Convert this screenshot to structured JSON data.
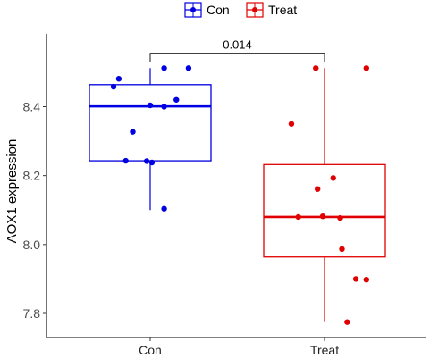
{
  "chart_data": {
    "type": "boxplot",
    "xlabel": "",
    "ylabel": "AOX1 expression",
    "ylim": [
      7.75,
      8.56
    ],
    "yticks": [
      7.8,
      8.0,
      8.2,
      8.4
    ],
    "ytick_labels": [
      "7.8",
      "8.0",
      "8.2",
      "8.4"
    ],
    "categories": [
      "Con",
      "Treat"
    ],
    "legend": {
      "position": "top",
      "entries": [
        "Con",
        "Treat"
      ]
    },
    "groups": [
      {
        "name": "Con",
        "color": "#0000e0",
        "min": 8.1,
        "q1": 8.243,
        "median": 8.401,
        "q3": 8.464,
        "max": 8.512,
        "points": [
          {
            "x": 1.22,
            "y": 8.512
          },
          {
            "x": 1.08,
            "y": 8.512
          },
          {
            "x": 0.82,
            "y": 8.481
          },
          {
            "x": 0.79,
            "y": 8.458
          },
          {
            "x": 1.15,
            "y": 8.42
          },
          {
            "x": 1.0,
            "y": 8.404
          },
          {
            "x": 1.08,
            "y": 8.4
          },
          {
            "x": 0.9,
            "y": 8.327
          },
          {
            "x": 0.86,
            "y": 8.243
          },
          {
            "x": 0.98,
            "y": 8.242
          },
          {
            "x": 1.01,
            "y": 8.238
          },
          {
            "x": 1.08,
            "y": 8.104
          }
        ]
      },
      {
        "name": "Treat",
        "color": "#e00000",
        "min": 7.775,
        "q1": 7.964,
        "median": 8.08,
        "q3": 8.232,
        "max": 8.512,
        "points": [
          {
            "x": 1.95,
            "y": 8.512
          },
          {
            "x": 2.24,
            "y": 8.512
          },
          {
            "x": 1.81,
            "y": 8.35
          },
          {
            "x": 2.05,
            "y": 8.193
          },
          {
            "x": 1.96,
            "y": 8.161
          },
          {
            "x": 1.85,
            "y": 8.08
          },
          {
            "x": 1.99,
            "y": 8.082
          },
          {
            "x": 2.09,
            "y": 8.077
          },
          {
            "x": 2.1,
            "y": 7.987
          },
          {
            "x": 2.18,
            "y": 7.9
          },
          {
            "x": 2.24,
            "y": 7.898
          },
          {
            "x": 2.13,
            "y": 7.775
          }
        ]
      }
    ],
    "annotations": [
      {
        "type": "comparison-bracket",
        "from": "Con",
        "to": "Treat",
        "y": 8.555,
        "label": "0.014"
      }
    ]
  }
}
